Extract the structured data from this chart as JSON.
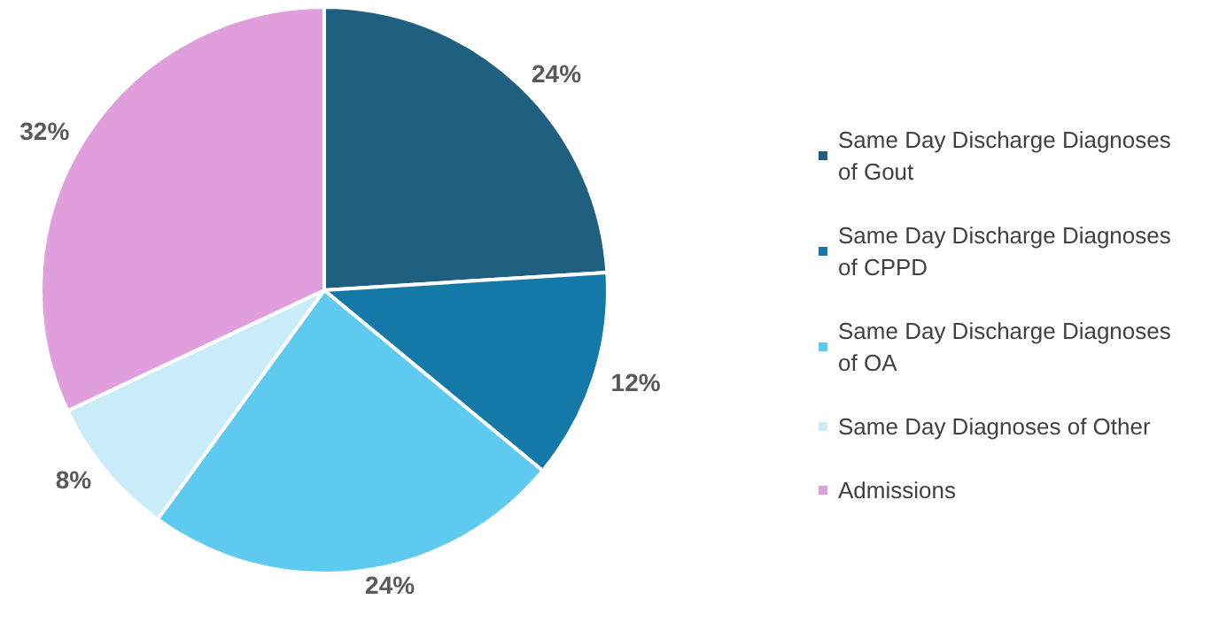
{
  "chart_data": {
    "type": "pie",
    "categories": [
      "Same Day Discharge Diagnoses of Gout",
      "Same Day Discharge Diagnoses of CPPD",
      "Same Day Discharge Diagnoses of OA",
      "Same Day Diagnoses of Other",
      "Admissions"
    ],
    "values": [
      24,
      12,
      24,
      8,
      32
    ],
    "colors": [
      "#1f5f80",
      "#1479a6",
      "#5fcaf0",
      "#c9ecfa",
      "#e09edd"
    ],
    "legend": "right",
    "value_labels": [
      "24%",
      "12%",
      "24%",
      "8%",
      "32%"
    ]
  }
}
